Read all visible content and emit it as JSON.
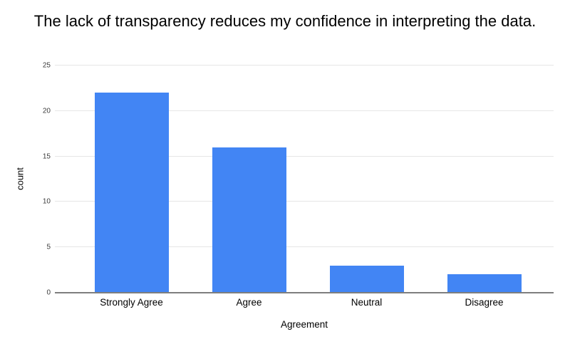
{
  "chart_data": {
    "type": "bar",
    "title": "The lack of transparency reduces my confidence in interpreting the data.",
    "categories": [
      "Strongly Agree",
      "Agree",
      "Neutral",
      "Disagree"
    ],
    "values": [
      22,
      16,
      3,
      2
    ],
    "xlabel": "Agreement",
    "ylabel": "count",
    "ylim": [
      0,
      25
    ],
    "y_ticks": [
      0,
      5,
      10,
      15,
      20,
      25
    ],
    "grid": true,
    "legend_position": "none",
    "colors": {
      "bar": "#4285f4",
      "gridline": "#e6e6e6",
      "axis_line": "#7e7e7e",
      "tick_label": "#3c3c3c",
      "text": "#000000",
      "background": "#ffffff"
    }
  }
}
